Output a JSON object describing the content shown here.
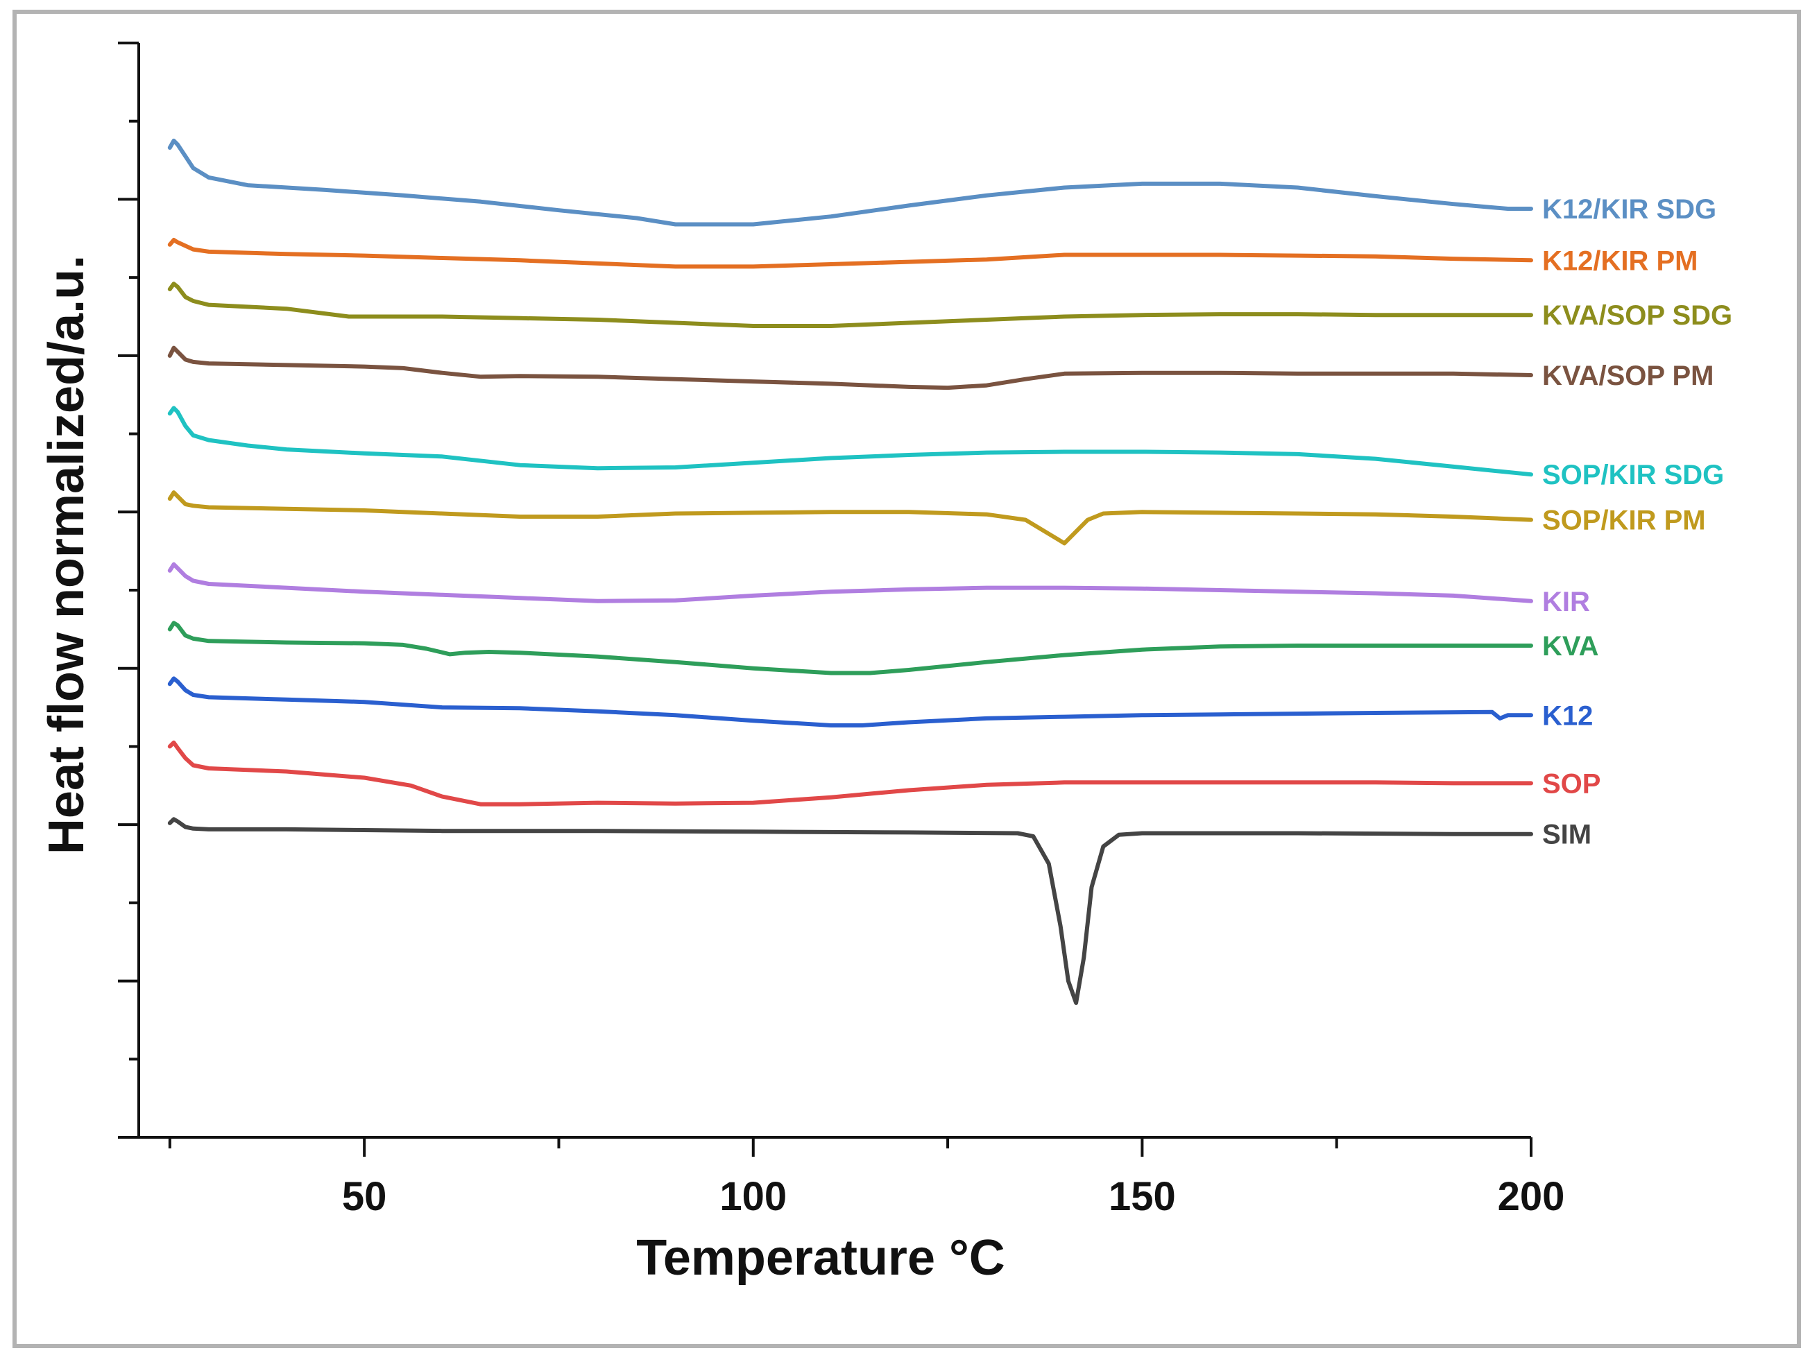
{
  "chart_data": {
    "type": "line",
    "title": "",
    "xlabel": "Temperature °C",
    "ylabel": "Heat flow normalized/a.u.",
    "xlim": [
      21,
      200
    ],
    "ylim": [
      0,
      14
    ],
    "xticks": [
      50,
      100,
      150,
      200
    ],
    "xtick_labels": [
      "50",
      "100",
      "150",
      "200"
    ],
    "y_tick_labels_shown": false,
    "grid": false,
    "legend": "inline labels at right end of each curve",
    "series": [
      {
        "name": "K12/KIR SDG",
        "color": "#5b8fc4",
        "points": [
          [
            25,
            12.66
          ],
          [
            25.5,
            12.75
          ],
          [
            26,
            12.7
          ],
          [
            27,
            12.55
          ],
          [
            28,
            12.4
          ],
          [
            30,
            12.28
          ],
          [
            35,
            12.18
          ],
          [
            45,
            12.12
          ],
          [
            55,
            12.05
          ],
          [
            65,
            11.97
          ],
          [
            75,
            11.86
          ],
          [
            85,
            11.76
          ],
          [
            90,
            11.68
          ],
          [
            100,
            11.68
          ],
          [
            110,
            11.78
          ],
          [
            120,
            11.92
          ],
          [
            130,
            12.05
          ],
          [
            140,
            12.15
          ],
          [
            150,
            12.2
          ],
          [
            160,
            12.2
          ],
          [
            170,
            12.15
          ],
          [
            180,
            12.04
          ],
          [
            190,
            11.94
          ],
          [
            197,
            11.88
          ],
          [
            200,
            11.88
          ]
        ]
      },
      {
        "name": "K12/KIR PM",
        "color": "#e46f22",
        "points": [
          [
            25,
            11.42
          ],
          [
            25.5,
            11.48
          ],
          [
            26,
            11.45
          ],
          [
            28,
            11.36
          ],
          [
            30,
            11.33
          ],
          [
            40,
            11.3
          ],
          [
            50,
            11.28
          ],
          [
            60,
            11.25
          ],
          [
            70,
            11.22
          ],
          [
            80,
            11.18
          ],
          [
            90,
            11.14
          ],
          [
            100,
            11.14
          ],
          [
            110,
            11.17
          ],
          [
            120,
            11.2
          ],
          [
            130,
            11.23
          ],
          [
            140,
            11.29
          ],
          [
            150,
            11.29
          ],
          [
            160,
            11.29
          ],
          [
            170,
            11.28
          ],
          [
            180,
            11.27
          ],
          [
            190,
            11.24
          ],
          [
            200,
            11.22
          ]
        ]
      },
      {
        "name": "KVA/SOP SDG",
        "color": "#8d8d1d",
        "points": [
          [
            25,
            10.85
          ],
          [
            25.5,
            10.92
          ],
          [
            26,
            10.88
          ],
          [
            27,
            10.75
          ],
          [
            28,
            10.7
          ],
          [
            30,
            10.65
          ],
          [
            40,
            10.6
          ],
          [
            48,
            10.5
          ],
          [
            60,
            10.5
          ],
          [
            70,
            10.48
          ],
          [
            80,
            10.46
          ],
          [
            90,
            10.42
          ],
          [
            100,
            10.38
          ],
          [
            110,
            10.38
          ],
          [
            120,
            10.42
          ],
          [
            130,
            10.46
          ],
          [
            140,
            10.5
          ],
          [
            150,
            10.52
          ],
          [
            160,
            10.53
          ],
          [
            170,
            10.53
          ],
          [
            180,
            10.52
          ],
          [
            190,
            10.52
          ],
          [
            200,
            10.52
          ]
        ]
      },
      {
        "name": "KVA/SOP PM",
        "color": "#7a5340",
        "points": [
          [
            25,
            10.0
          ],
          [
            25.5,
            10.1
          ],
          [
            26,
            10.05
          ],
          [
            27,
            9.95
          ],
          [
            28,
            9.92
          ],
          [
            30,
            9.9
          ],
          [
            40,
            9.88
          ],
          [
            50,
            9.86
          ],
          [
            55,
            9.84
          ],
          [
            60,
            9.78
          ],
          [
            65,
            9.73
          ],
          [
            70,
            9.74
          ],
          [
            80,
            9.73
          ],
          [
            90,
            9.7
          ],
          [
            100,
            9.67
          ],
          [
            110,
            9.64
          ],
          [
            120,
            9.6
          ],
          [
            125,
            9.59
          ],
          [
            130,
            9.62
          ],
          [
            135,
            9.7
          ],
          [
            140,
            9.77
          ],
          [
            150,
            9.78
          ],
          [
            160,
            9.78
          ],
          [
            170,
            9.77
          ],
          [
            180,
            9.77
          ],
          [
            190,
            9.77
          ],
          [
            200,
            9.75
          ]
        ]
      },
      {
        "name": "SOP/KIR SDG",
        "color": "#1fc2c2",
        "points": [
          [
            25,
            9.26
          ],
          [
            25.5,
            9.33
          ],
          [
            26,
            9.28
          ],
          [
            27,
            9.1
          ],
          [
            28,
            8.98
          ],
          [
            30,
            8.92
          ],
          [
            35,
            8.85
          ],
          [
            40,
            8.8
          ],
          [
            50,
            8.75
          ],
          [
            60,
            8.71
          ],
          [
            70,
            8.6
          ],
          [
            80,
            8.56
          ],
          [
            90,
            8.57
          ],
          [
            100,
            8.63
          ],
          [
            110,
            8.69
          ],
          [
            120,
            8.73
          ],
          [
            130,
            8.76
          ],
          [
            140,
            8.77
          ],
          [
            150,
            8.77
          ],
          [
            160,
            8.76
          ],
          [
            170,
            8.74
          ],
          [
            180,
            8.68
          ],
          [
            190,
            8.58
          ],
          [
            200,
            8.48
          ]
        ]
      },
      {
        "name": "SOP/KIR PM",
        "color": "#c09a1e",
        "points": [
          [
            25,
            8.17
          ],
          [
            25.5,
            8.25
          ],
          [
            26,
            8.2
          ],
          [
            27,
            8.1
          ],
          [
            28,
            8.08
          ],
          [
            30,
            8.06
          ],
          [
            40,
            8.04
          ],
          [
            50,
            8.02
          ],
          [
            60,
            7.98
          ],
          [
            70,
            7.94
          ],
          [
            80,
            7.94
          ],
          [
            90,
            7.98
          ],
          [
            100,
            7.99
          ],
          [
            110,
            8.0
          ],
          [
            120,
            8.0
          ],
          [
            130,
            7.97
          ],
          [
            135,
            7.9
          ],
          [
            138,
            7.72
          ],
          [
            140,
            7.6
          ],
          [
            141,
            7.7
          ],
          [
            143,
            7.9
          ],
          [
            145,
            7.98
          ],
          [
            150,
            8.0
          ],
          [
            160,
            7.99
          ],
          [
            170,
            7.98
          ],
          [
            180,
            7.97
          ],
          [
            190,
            7.94
          ],
          [
            200,
            7.9
          ]
        ]
      },
      {
        "name": "KIR",
        "color": "#b07ee0",
        "points": [
          [
            25,
            7.25
          ],
          [
            25.5,
            7.33
          ],
          [
            26,
            7.28
          ],
          [
            27,
            7.18
          ],
          [
            28,
            7.12
          ],
          [
            30,
            7.08
          ],
          [
            40,
            7.03
          ],
          [
            50,
            6.98
          ],
          [
            60,
            6.94
          ],
          [
            70,
            6.9
          ],
          [
            80,
            6.86
          ],
          [
            90,
            6.87
          ],
          [
            100,
            6.93
          ],
          [
            110,
            6.98
          ],
          [
            120,
            7.01
          ],
          [
            130,
            7.03
          ],
          [
            140,
            7.03
          ],
          [
            150,
            7.02
          ],
          [
            160,
            7.0
          ],
          [
            170,
            6.98
          ],
          [
            180,
            6.96
          ],
          [
            190,
            6.93
          ],
          [
            200,
            6.86
          ]
        ]
      },
      {
        "name": "KVA",
        "color": "#2e9e5a",
        "points": [
          [
            25,
            6.5
          ],
          [
            25.5,
            6.58
          ],
          [
            26,
            6.55
          ],
          [
            27,
            6.42
          ],
          [
            28,
            6.38
          ],
          [
            30,
            6.35
          ],
          [
            40,
            6.33
          ],
          [
            50,
            6.32
          ],
          [
            55,
            6.3
          ],
          [
            58,
            6.25
          ],
          [
            61,
            6.18
          ],
          [
            63,
            6.2
          ],
          [
            66,
            6.21
          ],
          [
            70,
            6.2
          ],
          [
            80,
            6.15
          ],
          [
            90,
            6.08
          ],
          [
            100,
            6.0
          ],
          [
            110,
            5.94
          ],
          [
            115,
            5.94
          ],
          [
            120,
            5.98
          ],
          [
            130,
            6.08
          ],
          [
            140,
            6.17
          ],
          [
            150,
            6.24
          ],
          [
            160,
            6.28
          ],
          [
            170,
            6.29
          ],
          [
            180,
            6.29
          ],
          [
            190,
            6.29
          ],
          [
            200,
            6.29
          ]
        ]
      },
      {
        "name": "K12",
        "color": "#2a5fcf",
        "points": [
          [
            25,
            5.8
          ],
          [
            25.5,
            5.87
          ],
          [
            26,
            5.83
          ],
          [
            27,
            5.72
          ],
          [
            28,
            5.66
          ],
          [
            30,
            5.63
          ],
          [
            40,
            5.6
          ],
          [
            50,
            5.57
          ],
          [
            60,
            5.5
          ],
          [
            70,
            5.49
          ],
          [
            80,
            5.45
          ],
          [
            90,
            5.4
          ],
          [
            100,
            5.33
          ],
          [
            110,
            5.27
          ],
          [
            114,
            5.27
          ],
          [
            120,
            5.31
          ],
          [
            130,
            5.36
          ],
          [
            140,
            5.38
          ],
          [
            150,
            5.4
          ],
          [
            160,
            5.41
          ],
          [
            170,
            5.42
          ],
          [
            180,
            5.43
          ],
          [
            195,
            5.44
          ],
          [
            196,
            5.36
          ],
          [
            197,
            5.4
          ],
          [
            200,
            5.4
          ]
        ]
      },
      {
        "name": "SOP",
        "color": "#e14848",
        "points": [
          [
            25,
            5.0
          ],
          [
            25.5,
            5.05
          ],
          [
            26,
            4.98
          ],
          [
            27,
            4.85
          ],
          [
            28,
            4.76
          ],
          [
            30,
            4.72
          ],
          [
            40,
            4.68
          ],
          [
            50,
            4.6
          ],
          [
            56,
            4.5
          ],
          [
            60,
            4.36
          ],
          [
            65,
            4.26
          ],
          [
            70,
            4.26
          ],
          [
            80,
            4.28
          ],
          [
            90,
            4.27
          ],
          [
            100,
            4.28
          ],
          [
            110,
            4.35
          ],
          [
            120,
            4.44
          ],
          [
            130,
            4.51
          ],
          [
            140,
            4.54
          ],
          [
            150,
            4.54
          ],
          [
            160,
            4.54
          ],
          [
            170,
            4.54
          ],
          [
            180,
            4.54
          ],
          [
            190,
            4.53
          ],
          [
            200,
            4.53
          ]
        ]
      },
      {
        "name": "SIM",
        "color": "#444444",
        "points": [
          [
            25,
            4.02
          ],
          [
            25.5,
            4.07
          ],
          [
            26,
            4.04
          ],
          [
            27,
            3.97
          ],
          [
            28,
            3.95
          ],
          [
            30,
            3.94
          ],
          [
            40,
            3.94
          ],
          [
            50,
            3.93
          ],
          [
            60,
            3.92
          ],
          [
            80,
            3.92
          ],
          [
            100,
            3.91
          ],
          [
            120,
            3.9
          ],
          [
            134,
            3.89
          ],
          [
            136,
            3.85
          ],
          [
            138,
            3.5
          ],
          [
            139.5,
            2.7
          ],
          [
            140.5,
            2.0
          ],
          [
            141.5,
            1.72
          ],
          [
            142.5,
            2.3
          ],
          [
            143.5,
            3.2
          ],
          [
            145,
            3.72
          ],
          [
            147,
            3.87
          ],
          [
            150,
            3.89
          ],
          [
            170,
            3.89
          ],
          [
            190,
            3.88
          ],
          [
            200,
            3.88
          ]
        ]
      }
    ]
  }
}
